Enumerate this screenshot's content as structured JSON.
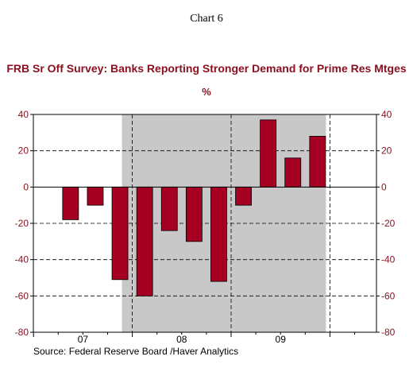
{
  "header": {
    "chart_number": "Chart 6"
  },
  "source": "Source:  Federal Reserve Board /Haver Analytics",
  "colors": {
    "bar": "#a50021",
    "shade": "#c8c8c8",
    "title": "#8b0f1e"
  },
  "chart_data": {
    "type": "bar",
    "title": "FRB Sr Off Survey: Banks Reporting Stronger Demand for Prime Res Mtges",
    "subtitle": "%",
    "xlabel": "",
    "ylabel": "",
    "ylim": [
      -80,
      40
    ],
    "yticks": [
      "40",
      "20",
      "0",
      "-20",
      "-40",
      "-60",
      "-80"
    ],
    "year_labels": [
      "07",
      "08",
      "09"
    ],
    "categories": [
      "2007 Q2",
      "2007 Q3",
      "2007 Q4",
      "2008 Q1",
      "2008 Q2",
      "2008 Q3",
      "2008 Q4",
      "2009 Q1",
      "2009 Q2",
      "2009 Q3",
      "2009 Q4"
    ],
    "values": [
      -18,
      -10,
      -51,
      -60,
      -24,
      -30,
      -52,
      -10,
      37,
      16,
      28
    ],
    "recession_shading": {
      "from": "2007 Q4",
      "to": "2009 Q4"
    },
    "grid": true,
    "legend": "none"
  }
}
